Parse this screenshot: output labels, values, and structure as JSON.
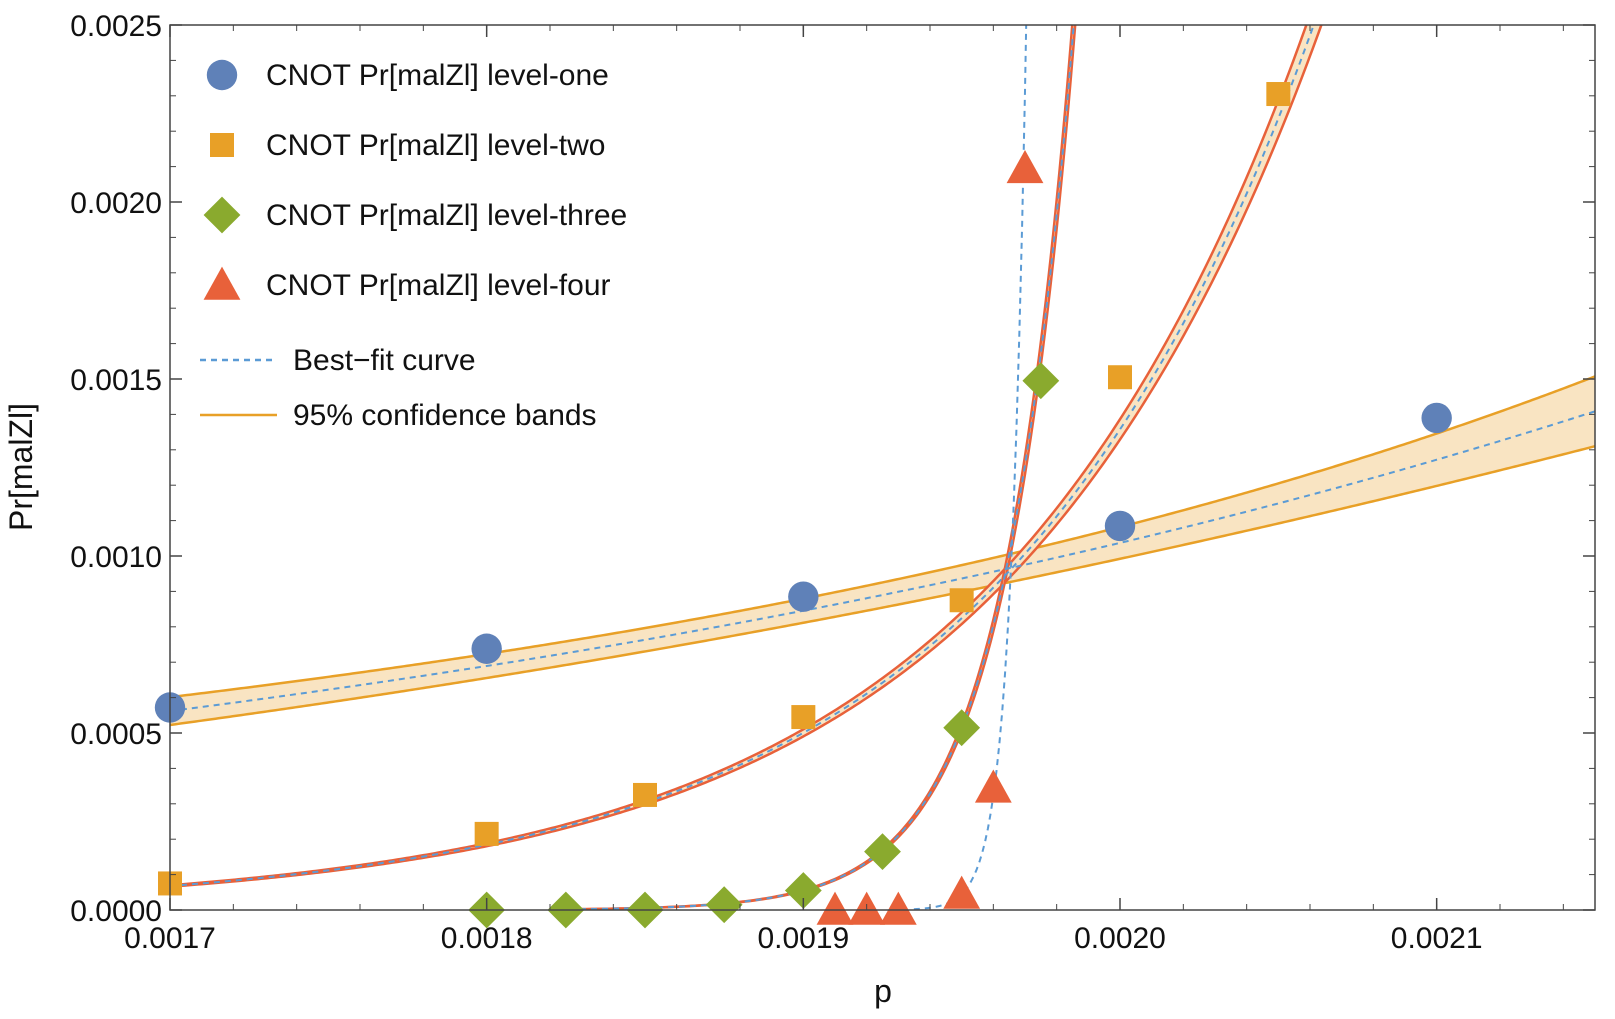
{
  "chart_data": {
    "type": "scatter",
    "xlabel": "p",
    "ylabel": "Pr[malZl]",
    "xlim": [
      0.0017,
      0.00215
    ],
    "ylim": [
      0.0,
      0.0025
    ],
    "x_ticks": [
      "0.0017",
      "0.0018",
      "0.0019",
      "0.0020",
      "0.0021"
    ],
    "y_ticks": [
      "0.0000",
      "0.0005",
      "0.0010",
      "0.0015",
      "0.0020",
      "0.0025"
    ],
    "grid": false,
    "legend_position": "top-left",
    "series": [
      {
        "name": "CNOT Pr[malZl] level-one",
        "marker": "circle",
        "color": "#5f81b8",
        "points": [
          [
            0.0017,
            0.000572
          ],
          [
            0.0018,
            0.000738
          ],
          [
            0.0019,
            0.000885
          ],
          [
            0.002,
            0.001085
          ],
          [
            0.0021,
            0.00139
          ]
        ]
      },
      {
        "name": "CNOT Pr[malZl] level-two",
        "marker": "square",
        "color": "#e8a027",
        "points": [
          [
            0.0017,
            7.5e-05
          ],
          [
            0.0018,
            0.000215
          ],
          [
            0.00185,
            0.000325
          ],
          [
            0.0019,
            0.000545
          ],
          [
            0.00195,
            0.000875
          ],
          [
            0.002,
            0.001505
          ],
          [
            0.00205,
            0.002305
          ]
        ]
      },
      {
        "name": "CNOT Pr[malZl] level-three",
        "marker": "diamond",
        "color": "#8aaa2e",
        "points": [
          [
            0.0018,
            0.0
          ],
          [
            0.001825,
            0.0
          ],
          [
            0.00185,
            0.0
          ],
          [
            0.001875,
            1.5e-05
          ],
          [
            0.0019,
            5.5e-05
          ],
          [
            0.001925,
            0.000165
          ],
          [
            0.00195,
            0.000515
          ],
          [
            0.001975,
            0.001495
          ]
        ]
      },
      {
        "name": "CNOT Pr[malZl] level-four",
        "marker": "triangle",
        "color": "#e8613a",
        "points": [
          [
            0.00191,
            0.0
          ],
          [
            0.00192,
            0.0
          ],
          [
            0.00193,
            0.0
          ],
          [
            0.00195,
            4.5e-05
          ],
          [
            0.00196,
            0.000345
          ],
          [
            0.00197,
            0.002095
          ]
        ]
      }
    ],
    "fits": [
      {
        "for": "CNOT Pr[malZl] level-one",
        "model": "exponential",
        "params": {
          "a": 0.000562,
          "b": 2042,
          "x0": 0.0017
        },
        "band_color": "#e8a027",
        "band_fill": "#f9e4c2",
        "band_rel_width_edges": 0.07,
        "band_rel_width_mid": 0.04
      },
      {
        "for": "CNOT Pr[malZl] level-two",
        "model": "exponential",
        "params": {
          "a": 6.8e-05,
          "b": 9980,
          "x0": 0.0017
        },
        "band_color": "#e8613a",
        "band_fill": "#f9e4c2",
        "band_rel_width_edges": 0.03,
        "band_rel_width_mid": 0.02
      },
      {
        "for": "CNOT Pr[malZl] level-three",
        "model": "exponential",
        "params": {
          "a": 5.5e-05,
          "b": 44700,
          "x0": 0.0019
        },
        "band_color": "#e8613a",
        "band_fill": "#f9e4c2",
        "band_rel_width_edges": 0.03,
        "band_rel_width_mid": 0.02
      },
      {
        "for": "CNOT Pr[malZl] level-four",
        "model": "exponential",
        "params": {
          "a": 4.5e-05,
          "b": 197000,
          "x0": 0.00195
        },
        "band_color": null,
        "band_fill": null,
        "band_rel_width_edges": 0,
        "band_rel_width_mid": 0
      }
    ],
    "legend": {
      "fit_line_label": "Best−fit curve",
      "band_label": "95% confidence bands",
      "fit_line_color": "#5b9bd5",
      "band_line_color": "#e8a027"
    }
  }
}
